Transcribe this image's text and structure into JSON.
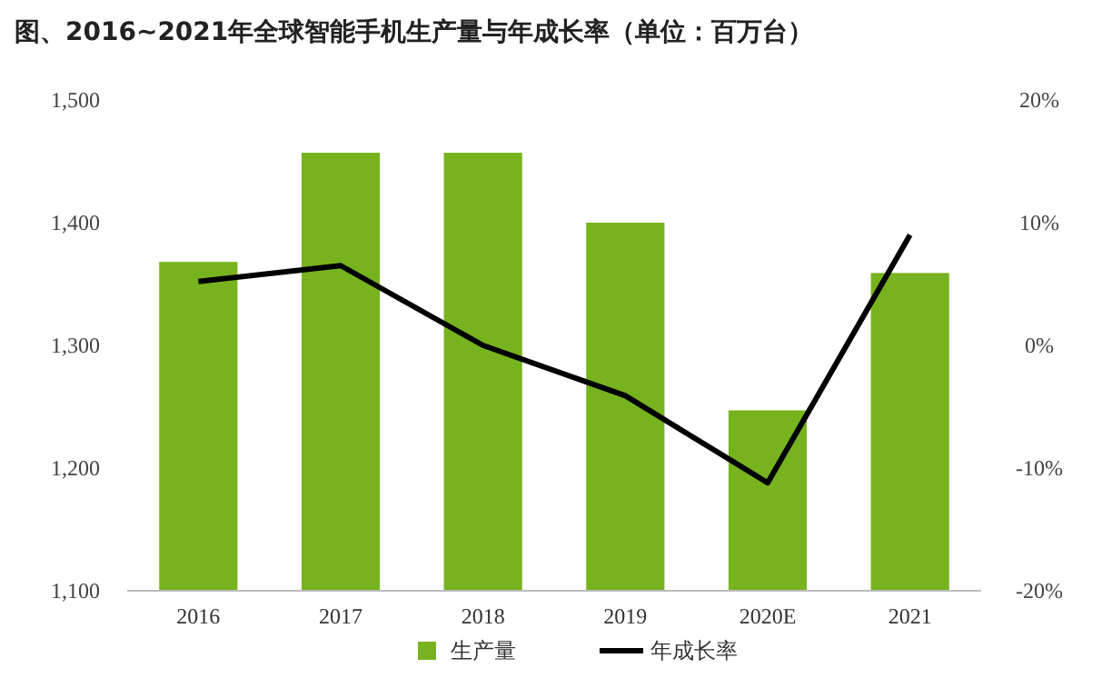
{
  "chart_data": {
    "type": "bar",
    "title": "图、2016~2021年全球智能手机生产量与年成长率（单位：百万台）",
    "categories": [
      "2016",
      "2017",
      "2018",
      "2019",
      "2020E",
      "2021"
    ],
    "series": [
      {
        "name": "生产量",
        "color": "#77b31e",
        "values": [
          1368,
          1457,
          1457,
          1400,
          1247,
          1359
        ]
      },
      {
        "name": "年成长率",
        "type": "line",
        "axis": "y2",
        "color": "#000000",
        "values": [
          5.2,
          6.5,
          0,
          -4.1,
          -11.2,
          9.0
        ]
      }
    ],
    "ylim": [
      1100,
      1500
    ],
    "yticks": [
      {
        "value": 1100,
        "label": "1,100"
      },
      {
        "value": 1200,
        "label": "1,200"
      },
      {
        "value": 1300,
        "label": "1,300"
      },
      {
        "value": 1400,
        "label": "1,400"
      },
      {
        "value": 1500,
        "label": "1,500"
      }
    ],
    "y2lim": [
      -20,
      20
    ],
    "y2ticks": [
      {
        "value": -20,
        "label": "-20%"
      },
      {
        "value": -10,
        "label": "-10%"
      },
      {
        "value": 0,
        "label": "0%"
      },
      {
        "value": 10,
        "label": "10%"
      },
      {
        "value": 20,
        "label": "20%"
      }
    ],
    "grid": false,
    "legend": "bottom",
    "marker": "none",
    "line_style": "solid"
  }
}
